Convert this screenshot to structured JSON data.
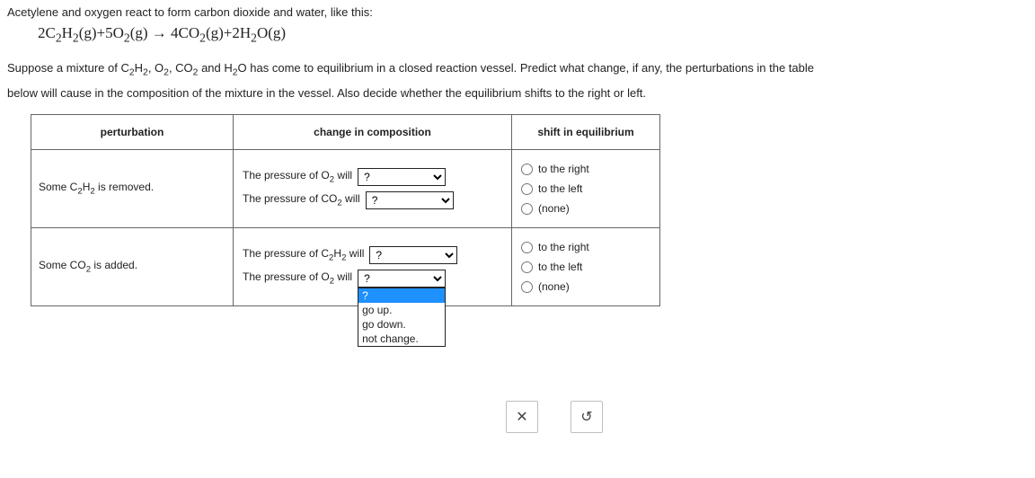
{
  "intro_text": "Acetylene and oxygen react to form carbon dioxide and water, like this:",
  "equation_parts": {
    "lhs1_coef": "2C",
    "lhs1_sub1": "2",
    "lhs1_mid": "H",
    "lhs1_sub2": "2",
    "lhs1_state": "(g)",
    "plus1": "+",
    "lhs2_coef": "5O",
    "lhs2_sub": "2",
    "lhs2_state": "(g)",
    "arrow": " → ",
    "rhs1_coef": "4CO",
    "rhs1_sub": "2",
    "rhs1_state": "(g)",
    "plus2": "+",
    "rhs2_coef": "2H",
    "rhs2_sub": "2",
    "rhs2_mid": "O",
    "rhs2_state": "(g)"
  },
  "para_pre": "Suppose a mixture of C",
  "para_s1": "2",
  "para_m1": "H",
  "para_s2": "2",
  "para_m2": ", O",
  "para_s3": "2",
  "para_m3": ", CO",
  "para_s4": "2",
  "para_m4": " and H",
  "para_s5": "2",
  "para_post1": "O has come to equilibrium in a closed reaction vessel. Predict what change, if any, the perturbations in the table",
  "para_post2": "below will cause in the composition of the mixture in the vessel. Also decide whether the equilibrium shifts to the right or left.",
  "table": {
    "headers": {
      "perturbation": "perturbation",
      "change": "change in composition",
      "shift": "shift in equilibrium"
    },
    "row1": {
      "pert_pre": "Some C",
      "pert_s1": "2",
      "pert_m": "H",
      "pert_s2": "2",
      "pert_post": " is removed.",
      "c1_pre": "The pressure of O",
      "c1_sub": "2",
      "c1_post": " will",
      "c2_pre": "The pressure of CO",
      "c2_sub": "2",
      "c2_post": " will"
    },
    "row2": {
      "pert_pre": "Some CO",
      "pert_s1": "2",
      "pert_post": " is added.",
      "c1_pre": "The pressure of C",
      "c1_s1": "2",
      "c1_m": "H",
      "c1_s2": "2",
      "c1_post": " will",
      "c2_pre": "The pressure of O",
      "c2_sub": "2",
      "c2_post": " will"
    },
    "shift_options": {
      "right": "to the right",
      "left": "to the left",
      "none": "(none)"
    },
    "dd_placeholder": "?",
    "dd_options": [
      "?",
      "go up.",
      "go down.",
      "not change."
    ]
  },
  "buttons": {
    "close": "✕",
    "reset": "↺"
  }
}
